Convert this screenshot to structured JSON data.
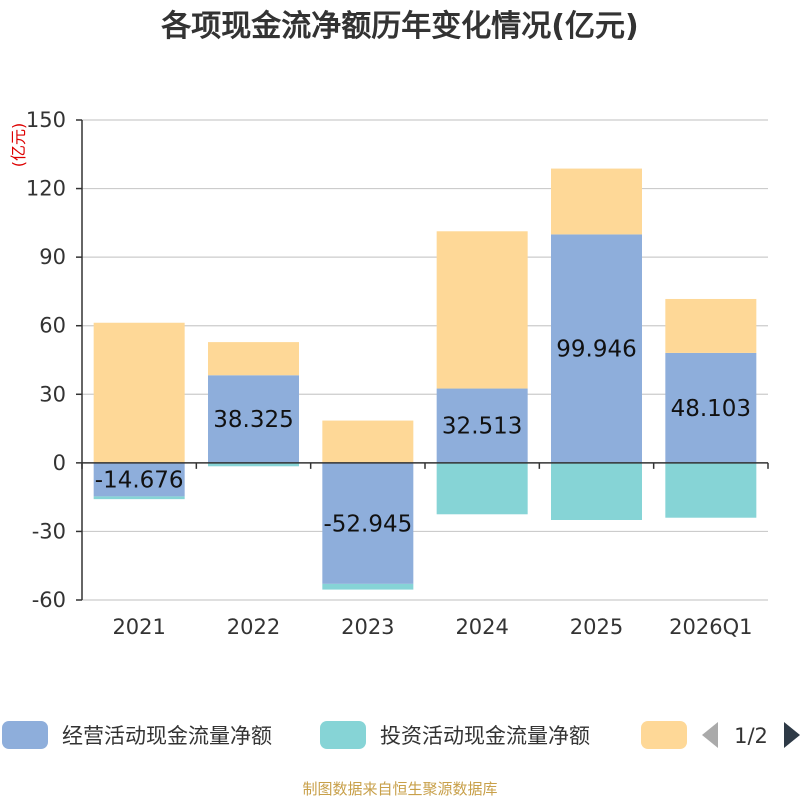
{
  "chart_data": {
    "type": "bar",
    "stacked": true,
    "title": "各项现金流净额历年变化情况(亿元)",
    "ylabel": "(亿元)",
    "xlabel": "",
    "categories": [
      "2021",
      "2022",
      "2023",
      "2024",
      "2025",
      "2026Q1"
    ],
    "ylim": [
      -60,
      150
    ],
    "yticks": [
      -60,
      -30,
      0,
      30,
      60,
      90,
      120,
      150
    ],
    "grid": true,
    "series": [
      {
        "name": "经营活动现金流量净额",
        "color": "#8eaedb",
        "values": [
          -14.676,
          38.325,
          -52.945,
          32.513,
          99.946,
          48.103
        ],
        "labels": [
          "-14.676",
          "38.325",
          "-52.945",
          "32.513",
          "99.946",
          "48.103"
        ]
      },
      {
        "name": "投资活动现金流量净额",
        "color": "#86d4d6",
        "values": [
          -1.2,
          -1.5,
          -2.5,
          -22.5,
          -25.0,
          -24.0
        ]
      },
      {
        "name": "",
        "color": "#fed897",
        "values": [
          61.3,
          14.5,
          18.5,
          68.8,
          28.8,
          23.6
        ]
      }
    ],
    "legend": {
      "position": "bottom",
      "page": "1/2"
    },
    "source": "制图数据来自恒生聚源数据库"
  },
  "colors": {
    "axis": "#333333",
    "grid": "#cccccc",
    "title": "#333333",
    "unit": "#dd0000",
    "source": "#c8a04a",
    "pager": "#2e3a46",
    "pager_disabled": "#aaaaaa"
  },
  "icons": {
    "prev": "triangle-left",
    "next": "triangle-right"
  }
}
